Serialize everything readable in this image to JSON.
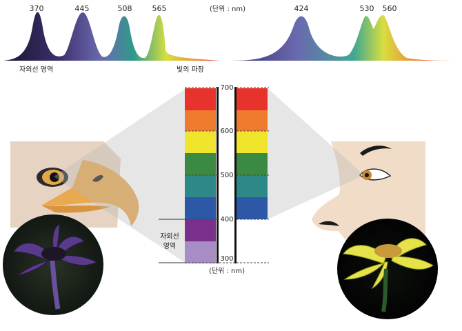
{
  "left_spectrum": {
    "peaks": [
      "370",
      "445",
      "508",
      "565"
    ],
    "uv_label": "자외선 영역"
  },
  "right_spectrum": {
    "peaks": [
      "424",
      "530",
      "560"
    ]
  },
  "unit_top": "(단위 : nm)",
  "wavelength_label": "빛의 파장",
  "scale": {
    "ticks": [
      "700",
      "600",
      "500",
      "400",
      "300"
    ],
    "unit_bottom": "(단위 : nm)"
  },
  "uv_side_label": [
    "자외선",
    "영역"
  ],
  "colors": {
    "band_red": "#e8332c",
    "band_orange": "#ef7b2e",
    "band_yellow": "#f0e42c",
    "band_green": "#3a8a44",
    "band_teal": "#2e8888",
    "band_blue": "#2d58a8",
    "band_uv1": "#7a2f8c",
    "band_uv2": "#a88cc4",
    "skin_bird": "#e6d3c2",
    "skin_human": "#f1dcc8",
    "beak": "#e8a64a"
  }
}
